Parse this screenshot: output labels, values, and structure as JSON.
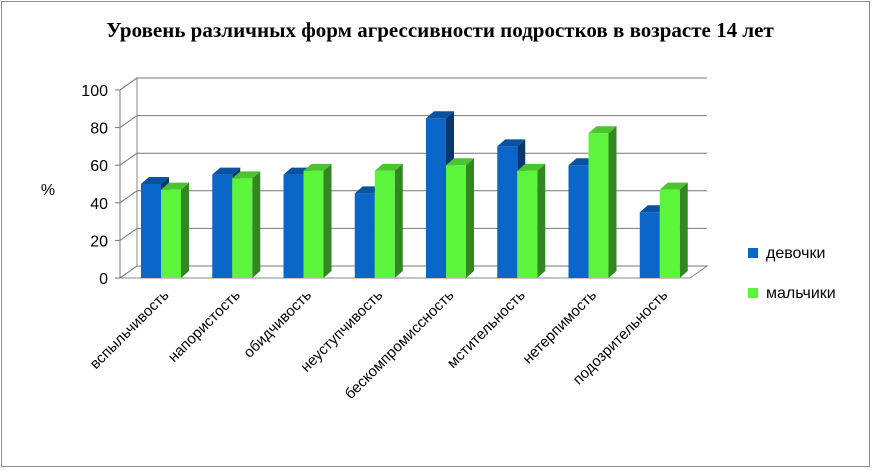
{
  "chart_data": {
    "type": "bar",
    "title": "Уровень различных форм агрессивности подростков в возрасте 14 лет",
    "ylabel": "%",
    "xlabel": "",
    "ylim": [
      0,
      100
    ],
    "yticks": [
      0,
      20,
      40,
      60,
      80,
      100
    ],
    "grid": true,
    "legend_position": "right",
    "categories": [
      "вспыльчивость",
      "напористость",
      "обидчивость",
      "неуступчивость",
      "бескомпромиссность",
      "мстительность",
      "нетерпимость",
      "подозрительность"
    ],
    "series": [
      {
        "name": "девочки",
        "color": "#0a66c8",
        "values": [
          50,
          55,
          55,
          45,
          85,
          70,
          60,
          35
        ]
      },
      {
        "name": "мальчики",
        "color": "#5cf53b",
        "values": [
          47,
          53,
          57,
          57,
          60,
          57,
          77,
          47
        ]
      }
    ]
  }
}
